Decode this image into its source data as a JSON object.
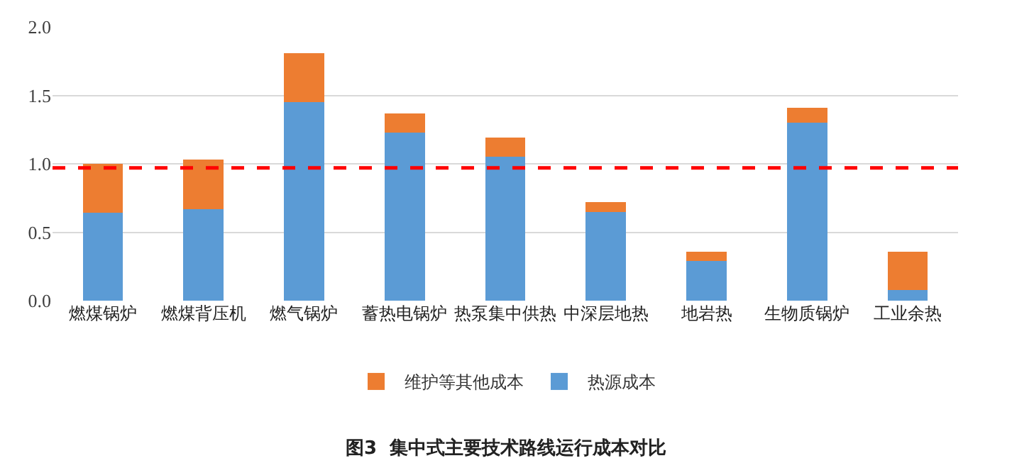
{
  "chart_data": {
    "type": "bar",
    "stacked": true,
    "title": "图3  集中式主要技术路线运行成本对比",
    "categories": [
      "燃煤锅炉",
      "燃煤背压机",
      "燃气锅炉",
      "蓄热电锅炉",
      "热泵集中供热",
      "中深层地热",
      "地岩热",
      "生物质锅炉",
      "工业余热"
    ],
    "series": [
      {
        "name": "热源成本",
        "color": "#5b9bd5",
        "values": [
          0.64,
          0.67,
          1.45,
          1.23,
          1.05,
          0.65,
          0.29,
          1.3,
          0.08
        ]
      },
      {
        "name": "维护等其他成本",
        "color": "#ed7d31",
        "values": [
          0.36,
          0.36,
          0.36,
          0.14,
          0.14,
          0.07,
          0.07,
          0.11,
          0.28
        ]
      }
    ],
    "ylim": [
      0,
      2.0
    ],
    "yticks": [
      {
        "value": 0,
        "label": "0.0"
      },
      {
        "value": 0.5,
        "label": "0.5"
      },
      {
        "value": 1.0,
        "label": "1.0"
      },
      {
        "value": 1.5,
        "label": "1.5"
      },
      {
        "value": 2.0,
        "label": "2.0"
      }
    ],
    "grid": "y",
    "legend": "bottom",
    "ref_lines": [
      {
        "axis": "y",
        "value": 0.97,
        "color": "#ff0000",
        "line_style": "dashed"
      }
    ]
  }
}
